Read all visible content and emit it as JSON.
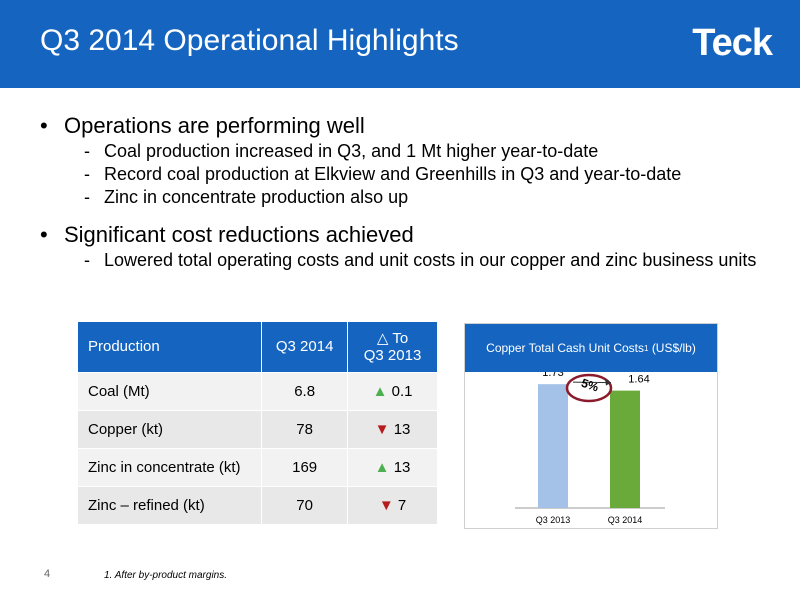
{
  "header": {
    "title": "Q3 2014 Operational Highlights",
    "logo": "Teck"
  },
  "bullets": [
    {
      "text": "Operations are performing well",
      "sub": [
        "Coal production increased in Q3, and 1 Mt higher year-to-date",
        "Record coal production at Elkview and Greenhills in Q3 and year-to-date",
        "Zinc in concentrate production also up"
      ]
    },
    {
      "text": "Significant cost reductions achieved",
      "sub": [
        "Lowered total operating costs and unit costs in our copper and zinc business units"
      ]
    }
  ],
  "table": {
    "headers": [
      "Production",
      "Q3 2014",
      "△ To Q3 2013"
    ],
    "rows": [
      {
        "label": "Coal (Mt)",
        "value": "6.8",
        "arrow": "▲",
        "change": "0.1"
      },
      {
        "label": "Copper (kt)",
        "value": "78",
        "arrow": "▼",
        "change": "13"
      },
      {
        "label": "Zinc in concentrate (kt)",
        "value": "169",
        "arrow": "▲",
        "change": "13"
      },
      {
        "label": "Zinc – refined (kt)",
        "value": "70",
        "arrow": "▼",
        "change": "7"
      }
    ]
  },
  "chart_data": {
    "type": "bar",
    "title": "Copper Total Cash Unit Costs",
    "title_sup": "1",
    "title_unit": "(US$/lb)",
    "categories": [
      "Q3 2013",
      "Q3 2014"
    ],
    "values": [
      1.73,
      1.64
    ],
    "value_labels": [
      "1.73",
      "1.64"
    ],
    "colors": [
      "#a4c2e8",
      "#6aaa3a"
    ],
    "annotation": "5%",
    "ylim": [
      0,
      1.9
    ]
  },
  "page_number": "4",
  "footnote": "1.    After by-product margins."
}
